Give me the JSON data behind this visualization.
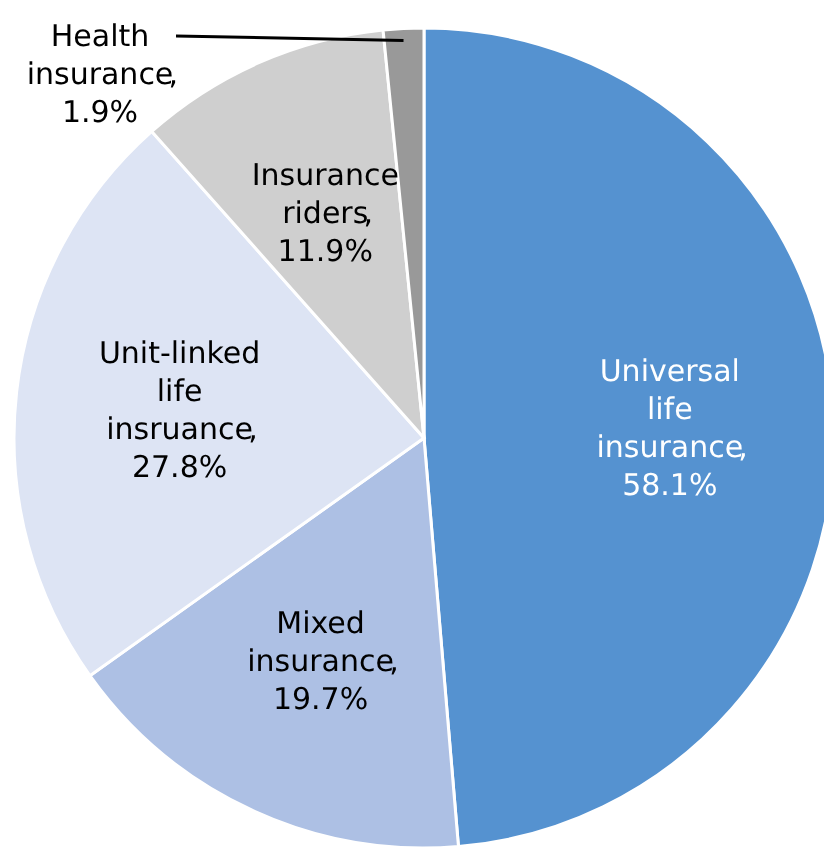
{
  "chart_data": {
    "type": "pie",
    "categories": [
      "Universal life insurance",
      "Mixed insurance",
      "Unit-linked life insruance",
      "Insurance riders",
      "Health insurance"
    ],
    "values": [
      58.1,
      19.7,
      27.8,
      11.9,
      1.9
    ],
    "value_labels": [
      ", 58.1%",
      ", 19.7%",
      ", 27.8%",
      ", 11.9%",
      ", 1.9%"
    ],
    "colors": [
      "#5592d0",
      "#adc0e4",
      "#dde4f4",
      "#cfcfcf",
      "#999999"
    ]
  }
}
